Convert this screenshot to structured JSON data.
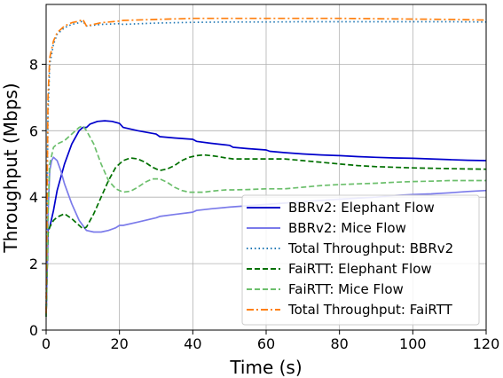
{
  "chart_data": {
    "type": "line",
    "title": "",
    "xlabel": "Time (s)",
    "ylabel": "Throughput (Mbps)",
    "xlim": [
      0,
      120
    ],
    "ylim": [
      0,
      9.8
    ],
    "xticks": [
      0,
      20,
      40,
      60,
      80,
      100,
      120
    ],
    "yticks": [
      0,
      2,
      4,
      6,
      8
    ],
    "grid": true,
    "legend_position": "lower-right",
    "series": [
      {
        "name": "BBRv2: Elephant Flow",
        "color": "#0000cc",
        "style": "solid",
        "x": [
          0,
          0.5,
          1,
          2,
          3,
          5,
          7,
          9,
          10,
          11,
          12,
          14,
          16,
          18,
          20,
          21,
          25,
          30,
          31,
          35,
          40,
          41,
          45,
          50,
          51,
          55,
          60,
          61,
          65,
          70,
          75,
          80,
          85,
          90,
          95,
          100,
          105,
          110,
          115,
          120
        ],
        "y": [
          0.4,
          3.0,
          3.1,
          3.6,
          4.2,
          5.0,
          5.6,
          6.0,
          6.1,
          6.1,
          6.2,
          6.28,
          6.3,
          6.28,
          6.22,
          6.1,
          6.0,
          5.9,
          5.82,
          5.78,
          5.74,
          5.68,
          5.62,
          5.56,
          5.5,
          5.46,
          5.42,
          5.38,
          5.34,
          5.3,
          5.27,
          5.25,
          5.22,
          5.2,
          5.18,
          5.17,
          5.15,
          5.13,
          5.11,
          5.1
        ]
      },
      {
        "name": "BBRv2: Mice Flow",
        "color": "#7b7bea",
        "style": "solid",
        "x": [
          0,
          0.5,
          1,
          1.5,
          2,
          3,
          4,
          5,
          7,
          9,
          11,
          13,
          15,
          17,
          19,
          20,
          21,
          25,
          30,
          31,
          35,
          40,
          41,
          45,
          50,
          55,
          60,
          65,
          70,
          75,
          80,
          85,
          90,
          95,
          100,
          105,
          110,
          115,
          120
        ],
        "y": [
          0.4,
          3.5,
          4.8,
          5.1,
          5.2,
          5.1,
          4.8,
          4.4,
          3.8,
          3.3,
          3.0,
          2.95,
          2.95,
          3.0,
          3.08,
          3.15,
          3.15,
          3.25,
          3.38,
          3.42,
          3.48,
          3.55,
          3.6,
          3.65,
          3.7,
          3.74,
          3.78,
          3.82,
          3.86,
          3.9,
          3.94,
          3.97,
          4.0,
          4.05,
          4.08,
          4.1,
          4.13,
          4.17,
          4.2
        ]
      },
      {
        "name": "Total Throughput: BBRv2",
        "color": "#1f77b4",
        "style": "dotted",
        "x": [
          0,
          0.5,
          1,
          2,
          3,
          5,
          7,
          9,
          10,
          11,
          15,
          20,
          21,
          30,
          40,
          50,
          60,
          70,
          80,
          90,
          100,
          110,
          120
        ],
        "y": [
          0.5,
          6.5,
          8.0,
          8.6,
          8.9,
          9.1,
          9.2,
          9.25,
          9.3,
          9.15,
          9.2,
          9.22,
          9.2,
          9.24,
          9.26,
          9.27,
          9.27,
          9.28,
          9.28,
          9.28,
          9.28,
          9.28,
          9.27
        ]
      },
      {
        "name": "FaiRTT: Elephant Flow",
        "color": "#007000",
        "style": "dashed",
        "x": [
          0,
          0.5,
          1,
          2,
          3,
          5,
          7,
          9,
          10,
          11,
          13,
          15,
          17,
          19,
          21,
          23,
          25,
          27,
          29,
          31,
          33,
          35,
          37,
          39,
          41,
          43,
          45,
          47,
          49,
          51,
          55,
          60,
          65,
          70,
          75,
          80,
          85,
          90,
          95,
          100,
          105,
          110,
          115,
          120
        ],
        "y": [
          0.4,
          2.9,
          3.1,
          3.3,
          3.4,
          3.5,
          3.35,
          3.15,
          3.05,
          3.1,
          3.5,
          4.0,
          4.5,
          4.9,
          5.1,
          5.18,
          5.15,
          5.05,
          4.9,
          4.8,
          4.85,
          4.95,
          5.1,
          5.2,
          5.25,
          5.27,
          5.25,
          5.22,
          5.18,
          5.15,
          5.15,
          5.15,
          5.15,
          5.1,
          5.05,
          5.0,
          4.95,
          4.92,
          4.9,
          4.88,
          4.87,
          4.86,
          4.85,
          4.84
        ]
      },
      {
        "name": "FaiRTT: Mice Flow",
        "color": "#6cbf6c",
        "style": "dashed",
        "x": [
          0,
          0.5,
          1,
          2,
          3,
          5,
          7,
          9,
          10,
          11,
          13,
          15,
          17,
          19,
          21,
          23,
          25,
          27,
          29,
          31,
          33,
          35,
          37,
          39,
          41,
          43,
          45,
          47,
          49,
          51,
          55,
          60,
          65,
          70,
          75,
          80,
          85,
          90,
          95,
          100,
          105,
          110,
          115,
          120
        ],
        "y": [
          0.4,
          3.5,
          5.0,
          5.5,
          5.6,
          5.7,
          5.9,
          6.1,
          6.15,
          6.0,
          5.6,
          5.0,
          4.5,
          4.25,
          4.15,
          4.18,
          4.3,
          4.45,
          4.55,
          4.55,
          4.45,
          4.3,
          4.2,
          4.15,
          4.15,
          4.15,
          4.18,
          4.2,
          4.22,
          4.22,
          4.23,
          4.25,
          4.25,
          4.3,
          4.35,
          4.38,
          4.4,
          4.42,
          4.45,
          4.47,
          4.48,
          4.5,
          4.5,
          4.5
        ]
      },
      {
        "name": "Total Throughput: FaiRTT",
        "color": "#ff7f0e",
        "style": "dashdot",
        "x": [
          0,
          0.5,
          1,
          2,
          3,
          5,
          7,
          9,
          10,
          11,
          15,
          20,
          21,
          30,
          40,
          50,
          60,
          70,
          80,
          90,
          100,
          110,
          120
        ],
        "y": [
          0.5,
          7.0,
          8.2,
          8.7,
          8.95,
          9.15,
          9.25,
          9.3,
          9.35,
          9.15,
          9.25,
          9.3,
          9.32,
          9.35,
          9.38,
          9.38,
          9.38,
          9.38,
          9.38,
          9.37,
          9.36,
          9.35,
          9.33
        ]
      }
    ]
  }
}
